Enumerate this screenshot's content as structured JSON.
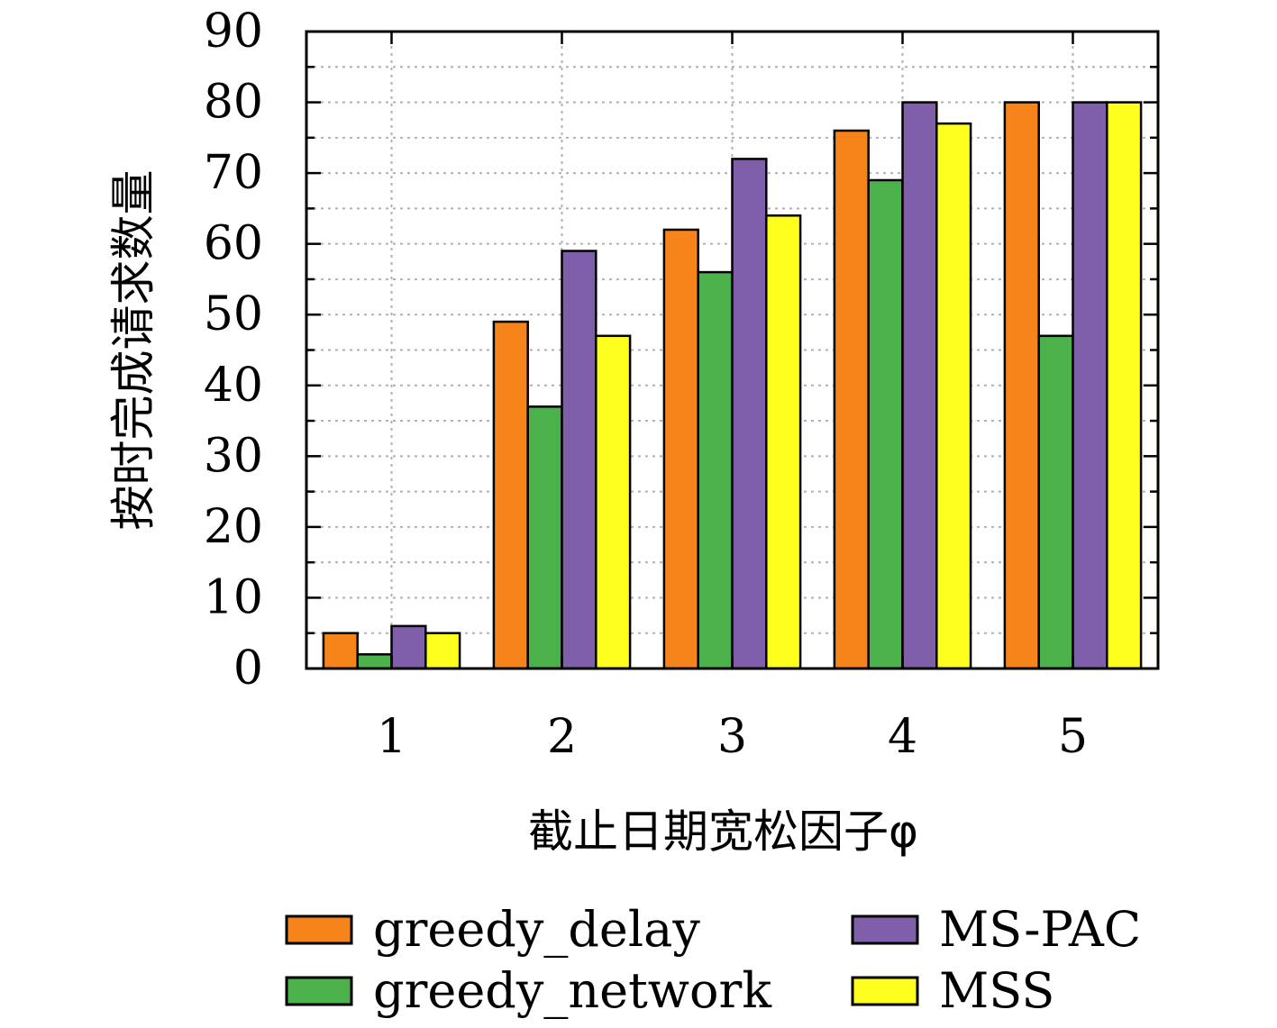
{
  "chart_data": {
    "type": "bar",
    "title": "",
    "xlabel": "截止日期宽松因子φ",
    "ylabel": "按时完成请求数量",
    "categories": [
      "1",
      "2",
      "3",
      "4",
      "5"
    ],
    "ylim": [
      0,
      90
    ],
    "yticks": [
      "0",
      "10",
      "20",
      "30",
      "40",
      "50",
      "60",
      "70",
      "80",
      "90"
    ],
    "grid": true,
    "legend_position": "bottom",
    "series": [
      {
        "name": "greedy_delay",
        "color": "#f7841a",
        "values": [
          5,
          49,
          62,
          76,
          80
        ]
      },
      {
        "name": "greedy_network",
        "color": "#4bb24b",
        "values": [
          2,
          37,
          56,
          69,
          47
        ]
      },
      {
        "name": "MS-PAC",
        "color": "#7f5fa9",
        "values": [
          6,
          59,
          72,
          80,
          80
        ]
      },
      {
        "name": "MSS",
        "color": "#ffff1e",
        "values": [
          5,
          47,
          64,
          77,
          80
        ]
      }
    ]
  }
}
